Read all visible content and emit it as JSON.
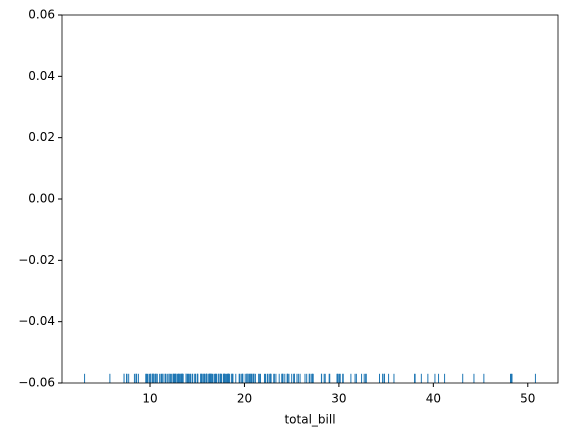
{
  "chart_data": {
    "type": "rug",
    "xlabel": "total_bill",
    "color": "#1f77b4",
    "x": [
      16.99,
      10.34,
      21.01,
      23.68,
      24.59,
      25.29,
      8.77,
      26.88,
      15.04,
      14.78,
      10.27,
      35.26,
      15.42,
      18.43,
      14.83,
      21.58,
      10.33,
      16.29,
      16.97,
      20.65,
      17.92,
      20.29,
      15.77,
      39.42,
      19.82,
      17.81,
      13.37,
      12.69,
      21.7,
      19.65,
      9.55,
      18.35,
      15.06,
      20.69,
      17.78,
      24.06,
      16.31,
      16.93,
      18.69,
      31.27,
      16.04,
      17.46,
      13.94,
      9.68,
      30.4,
      18.29,
      22.23,
      32.4,
      28.55,
      18.04,
      12.54,
      10.29,
      34.81,
      9.94,
      25.56,
      19.49,
      38.01,
      26.41,
      11.24,
      48.27,
      20.29,
      13.81,
      11.02,
      18.29,
      17.59,
      20.08,
      16.45,
      3.07,
      20.23,
      15.01,
      12.02,
      17.07,
      26.86,
      25.28,
      14.73,
      10.51,
      17.92,
      27.2,
      22.76,
      17.29,
      19.44,
      16.66,
      10.07,
      32.68,
      15.98,
      34.83,
      13.03,
      18.28,
      24.71,
      21.16,
      28.97,
      22.49,
      5.75,
      16.32,
      22.75,
      40.17,
      27.28,
      12.03,
      21.01,
      12.46,
      11.35,
      15.38,
      44.3,
      22.42,
      20.92,
      15.36,
      20.49,
      25.21,
      18.24,
      14.31,
      14.0,
      7.25,
      38.07,
      23.95,
      25.71,
      17.31,
      29.93,
      10.65,
      12.43,
      24.08,
      11.69,
      13.42,
      14.26,
      15.95,
      12.48,
      29.8,
      8.52,
      14.52,
      11.38,
      22.82,
      19.08,
      20.27,
      11.17,
      12.26,
      18.26,
      8.51,
      10.33,
      14.15,
      16.0,
      13.16,
      17.47,
      34.3,
      41.19,
      27.05,
      16.43,
      8.35,
      18.64,
      11.87,
      9.78,
      7.51,
      14.07,
      13.13,
      17.26,
      24.55,
      19.77,
      29.85,
      48.17,
      25.0,
      13.39,
      16.49,
      21.5,
      12.66,
      16.21,
      13.81,
      17.51,
      24.52,
      20.76,
      31.71,
      10.59,
      10.63,
      50.81,
      15.81,
      7.25,
      31.85,
      16.82,
      32.9,
      17.89,
      14.48,
      9.6,
      34.63,
      34.65,
      23.33,
      45.35,
      23.17,
      40.55,
      20.69,
      20.9,
      30.46,
      18.15,
      23.1,
      15.69,
      19.81,
      28.44,
      15.48,
      16.58,
      7.56,
      10.34,
      43.11,
      13.0,
      13.51,
      18.71,
      12.74,
      13.0,
      16.4,
      20.53,
      16.47,
      26.59,
      38.73,
      24.27,
      12.76,
      30.06,
      25.89,
      48.33,
      13.27,
      28.17,
      12.9,
      28.15,
      11.59,
      7.74,
      30.14,
      12.16,
      13.42,
      8.58,
      15.98,
      13.42,
      16.27,
      10.09,
      20.45,
      13.28,
      22.12,
      24.01,
      15.69,
      11.61,
      10.77,
      15.53,
      10.07,
      12.6,
      32.83,
      35.83,
      29.03,
      27.18,
      22.67,
      17.82,
      18.78
    ],
    "xlim": [
      0.68,
      53.2
    ],
    "xticks": [
      10,
      20,
      30,
      40,
      50
    ],
    "ylim": [
      -0.06,
      0.06
    ],
    "yticks": [
      {
        "value": -0.06,
        "label": "−0.06"
      },
      {
        "value": -0.04,
        "label": "−0.04"
      },
      {
        "value": -0.02,
        "label": "−0.02"
      },
      {
        "value": 0,
        "label": "0.00"
      },
      {
        "value": 0.02,
        "label": "0.02"
      },
      {
        "value": 0.04,
        "label": "0.04"
      },
      {
        "value": 0.06,
        "label": "0.06"
      }
    ]
  }
}
